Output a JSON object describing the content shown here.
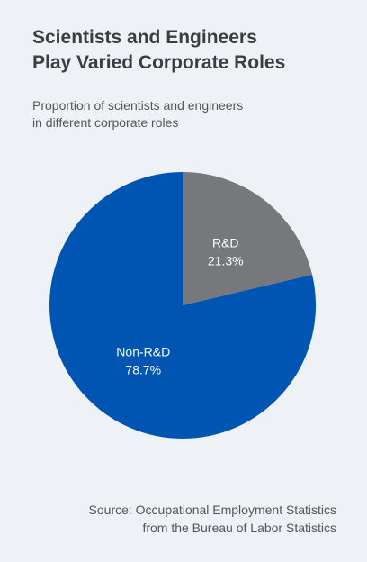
{
  "chart_data": {
    "type": "pie",
    "title_lines": [
      "Scientists and Engineers",
      "Play Varied Corporate Roles"
    ],
    "subtitle_lines": [
      "Proportion of scientists and engineers",
      "in different corporate roles"
    ],
    "slices": [
      {
        "label": "R&D",
        "value": 21.3,
        "display": "21.3%",
        "color": "#77787b"
      },
      {
        "label": "Non-R&D",
        "value": 78.7,
        "display": "78.7%",
        "color": "#0055b3"
      }
    ],
    "label_color": "#ffffff",
    "start_angle": "12 o'clock, clockwise"
  },
  "source_lines": [
    "Source: Occupational Employment Statistics",
    "from the Bureau of Labor Statistics"
  ]
}
